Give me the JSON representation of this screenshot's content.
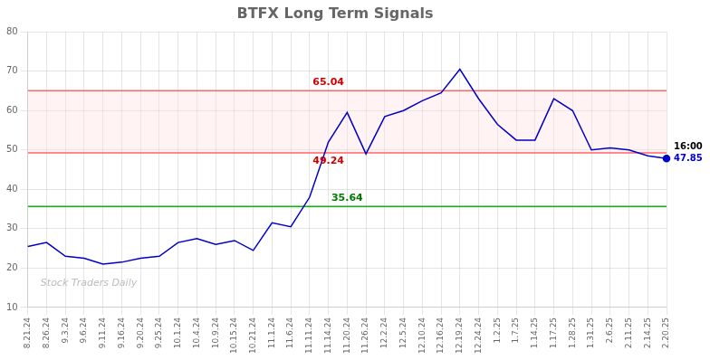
{
  "chart_data": {
    "type": "line",
    "title": "BTFX Long Term Signals",
    "categories": [
      "8.21.24",
      "8.26.24",
      "9.3.24",
      "9.6.24",
      "9.11.24",
      "9.16.24",
      "9.20.24",
      "9.25.24",
      "10.1.24",
      "10.4.24",
      "10.9.24",
      "10.15.24",
      "10.21.24",
      "11.1.24",
      "11.6.24",
      "11.11.24",
      "11.14.24",
      "11.20.24",
      "11.26.24",
      "12.2.24",
      "12.5.24",
      "12.10.24",
      "12.16.24",
      "12.19.24",
      "12.24.24",
      "1.2.25",
      "1.7.25",
      "1.14.25",
      "1.17.25",
      "1.28.25",
      "1.31.25",
      "2.6.25",
      "2.11.25",
      "2.14.25",
      "2.20.25"
    ],
    "values": [
      25.5,
      26.5,
      23.0,
      22.5,
      21.0,
      21.5,
      22.5,
      23.0,
      26.5,
      27.5,
      26.0,
      27.0,
      24.5,
      31.5,
      30.5,
      38.0,
      52.0,
      59.5,
      49.0,
      58.5,
      60.0,
      62.5,
      64.5,
      70.5,
      63.0,
      56.5,
      52.5,
      52.5,
      63.0,
      60.0,
      50.0,
      50.5,
      50.0,
      48.5,
      47.85
    ],
    "color": "#0000cc",
    "ylim": [
      10,
      80
    ],
    "yticks": [
      10,
      20,
      30,
      40,
      50,
      60,
      70,
      80
    ],
    "grid": true,
    "hlines": [
      {
        "value": 65.04,
        "color": "#ff6666",
        "label": "65.04",
        "label_color": "#cc0000"
      },
      {
        "value": 49.24,
        "color": "#ff6666",
        "label": "49.24",
        "label_color": "#cc0000"
      },
      {
        "value": 35.64,
        "color": "#00bb00",
        "label": "35.64",
        "label_color": "#007700"
      }
    ],
    "band": {
      "lower": 49.24,
      "upper": 65.04,
      "color": "#ffdddd"
    },
    "annotations": [
      {
        "text": "16:00",
        "color": "#000000"
      },
      {
        "text": "47.85",
        "color": "#0000cc"
      }
    ],
    "watermark": "Stock Traders Daily"
  }
}
